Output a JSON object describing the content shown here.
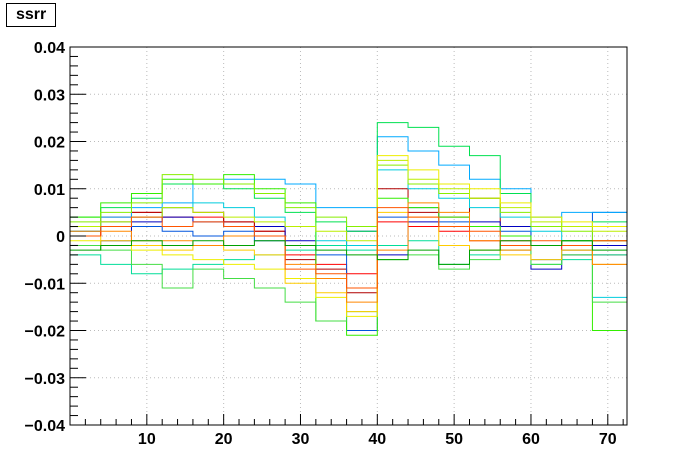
{
  "title": "ssrr",
  "chart_data": {
    "type": "line",
    "title": "ssrr",
    "xlabel": "",
    "ylabel": "",
    "xlim": [
      0,
      72.5
    ],
    "ylim": [
      -0.04,
      0.04
    ],
    "grid": true,
    "step": true,
    "x_ticks": [
      "10",
      "20",
      "30",
      "40",
      "50",
      "60",
      "70"
    ],
    "y_ticks": [
      "0.04",
      "0.03",
      "0.02",
      "0.01",
      "0",
      "−0.01",
      "−0.02",
      "−0.03",
      "−0.04"
    ],
    "bin_edges": [
      0,
      4,
      8,
      12,
      16,
      20,
      24,
      28,
      32,
      36,
      40,
      44,
      48,
      52,
      56,
      60,
      64,
      68,
      72.5
    ],
    "series": [
      {
        "color": "#ff0000",
        "values": [
          0.0,
          0.004,
          0.005,
          0.004,
          0.004,
          0.003,
          0.001,
          -0.004,
          -0.006,
          -0.008,
          0.003,
          0.002,
          0.001,
          -0.001,
          -0.001,
          -0.002,
          -0.003,
          -0.004
        ]
      },
      {
        "color": "#b00000",
        "values": [
          0.0,
          0.003,
          0.005,
          0.006,
          0.005,
          0.003,
          0.001,
          -0.005,
          -0.007,
          -0.012,
          0.01,
          0.005,
          0.004,
          0.008,
          0.002,
          -0.002,
          -0.001,
          -0.001
        ]
      },
      {
        "color": "#0000c0",
        "values": [
          -0.002,
          -0.001,
          0.003,
          0.004,
          0.003,
          0.002,
          0.002,
          -0.001,
          -0.002,
          0.001,
          -0.004,
          0.003,
          0.002,
          0.003,
          0.002,
          -0.007,
          -0.004,
          -0.002
        ]
      },
      {
        "color": "#0055dd",
        "values": [
          0.001,
          0.002,
          0.002,
          0.001,
          0.0,
          0.001,
          -0.001,
          -0.002,
          -0.004,
          -0.02,
          0.004,
          0.006,
          0.003,
          0.002,
          0.001,
          -0.005,
          -0.003,
          0.005
        ]
      },
      {
        "color": "#00aaff",
        "values": [
          0.002,
          0.004,
          0.006,
          0.007,
          0.011,
          0.012,
          0.012,
          0.011,
          0.006,
          0.006,
          0.021,
          0.018,
          0.015,
          0.012,
          0.01,
          0.004,
          0.005,
          0.005
        ]
      },
      {
        "color": "#00ccdd",
        "values": [
          0.001,
          0.003,
          0.004,
          0.006,
          0.007,
          0.006,
          0.004,
          0.002,
          -0.001,
          -0.002,
          0.014,
          0.01,
          0.008,
          0.006,
          0.004,
          0.001,
          -0.001,
          -0.013
        ]
      },
      {
        "color": "#00dd99",
        "values": [
          -0.004,
          -0.006,
          -0.008,
          -0.007,
          -0.006,
          -0.005,
          -0.004,
          -0.003,
          -0.002,
          -0.003,
          -0.002,
          -0.001,
          -0.006,
          -0.004,
          -0.002,
          -0.006,
          -0.005,
          -0.004
        ]
      },
      {
        "color": "#00e050",
        "values": [
          0.004,
          0.006,
          0.008,
          0.011,
          0.011,
          0.01,
          0.008,
          0.005,
          0.003,
          0.001,
          0.024,
          0.023,
          0.019,
          0.017,
          0.009,
          0.004,
          0.002,
          0.003
        ]
      },
      {
        "color": "#33ee00",
        "values": [
          0.004,
          0.007,
          0.009,
          0.012,
          0.011,
          0.013,
          0.01,
          0.007,
          -0.018,
          -0.021,
          0.008,
          0.006,
          0.004,
          0.002,
          0.0,
          -0.002,
          -0.001,
          -0.02
        ]
      },
      {
        "color": "#44dd44",
        "values": [
          -0.002,
          -0.003,
          -0.006,
          -0.011,
          -0.007,
          -0.009,
          -0.011,
          -0.014,
          -0.018,
          -0.016,
          -0.005,
          -0.004,
          -0.007,
          -0.005,
          -0.003,
          -0.006,
          -0.004,
          -0.014
        ]
      },
      {
        "color": "#88ee00",
        "values": [
          0.003,
          0.005,
          0.007,
          0.013,
          0.012,
          0.011,
          0.009,
          0.006,
          0.004,
          0.002,
          0.015,
          0.011,
          0.009,
          0.008,
          0.005,
          0.002,
          0.001,
          -0.001
        ]
      },
      {
        "color": "#bbee00",
        "values": [
          0.002,
          0.003,
          0.004,
          0.006,
          0.005,
          0.004,
          0.003,
          0.002,
          0.001,
          -0.001,
          0.016,
          0.012,
          0.01,
          0.008,
          0.006,
          0.003,
          0.002,
          0.001
        ]
      },
      {
        "color": "#eeee00",
        "values": [
          -0.001,
          -0.002,
          -0.003,
          -0.004,
          -0.005,
          -0.006,
          -0.007,
          -0.009,
          -0.013,
          -0.017,
          0.017,
          0.014,
          0.011,
          0.01,
          0.007,
          0.004,
          0.003,
          0.002
        ]
      },
      {
        "color": "#ffcc00",
        "values": [
          0.0,
          -0.001,
          -0.002,
          -0.003,
          -0.002,
          -0.003,
          -0.004,
          -0.01,
          -0.012,
          -0.016,
          0.005,
          0.004,
          -0.002,
          -0.003,
          -0.004,
          -0.005,
          -0.003,
          -0.006
        ]
      },
      {
        "color": "#ff8800",
        "values": [
          0.001,
          0.001,
          -0.001,
          -0.001,
          -0.002,
          0.0,
          0.0,
          -0.006,
          -0.009,
          -0.014,
          -0.003,
          0.007,
          0.005,
          -0.001,
          -0.003,
          -0.002,
          -0.002,
          -0.006
        ]
      },
      {
        "color": "#ff5500",
        "values": [
          0.0,
          0.002,
          0.004,
          0.002,
          0.003,
          0.002,
          0.0,
          -0.007,
          -0.008,
          -0.011,
          0.006,
          0.004,
          0.002,
          0.001,
          -0.002,
          -0.001,
          -0.002,
          -0.001
        ]
      },
      {
        "color": "#00a000",
        "values": [
          -0.003,
          -0.002,
          -0.001,
          -0.002,
          -0.001,
          -0.002,
          -0.001,
          -0.002,
          -0.003,
          -0.004,
          -0.005,
          -0.003,
          -0.006,
          -0.003,
          -0.001,
          -0.002,
          -0.001,
          -0.003
        ]
      }
    ]
  }
}
